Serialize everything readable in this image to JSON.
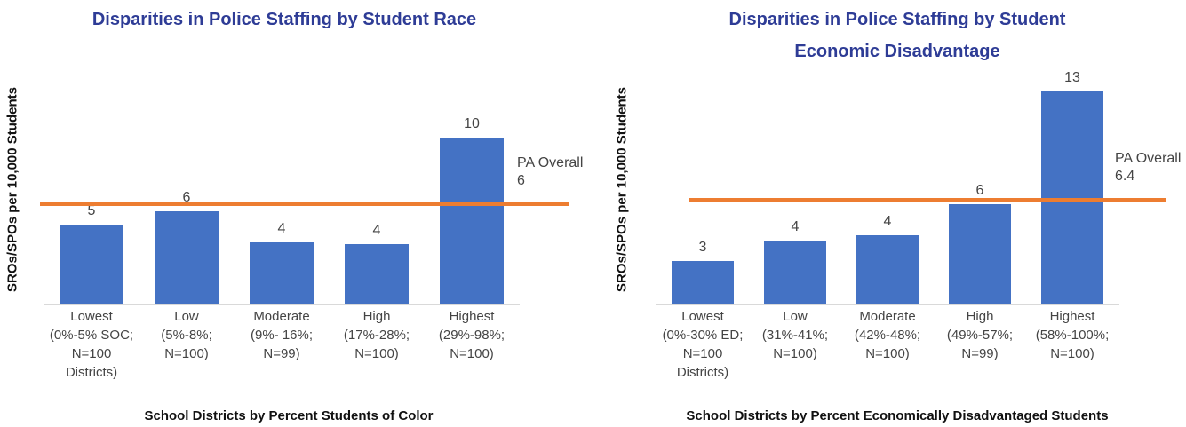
{
  "chart_data": [
    {
      "type": "bar",
      "title": "Disparities in Police Staffing by Student Race",
      "x_label": "School Districts by Percent Students of Color",
      "y_label": "SROs/SPOs per 10,000 Students",
      "categories": [
        "Lowest\n(0%-5% SOC;\nN=100\nDistricts)",
        "Low\n(5%-8%;\nN=100)",
        "Moderate\n(9%- 16%;\nN=99)",
        "High\n(17%-28%;\nN=100)",
        "Highest\n(29%-98%;\nN=100)"
      ],
      "values": [
        4.8,
        5.6,
        3.7,
        3.6,
        10.0
      ],
      "value_labels": [
        "5",
        "6",
        "4",
        "4",
        "10"
      ],
      "color": "#4472c4",
      "reference_line": {
        "label": "PA Overall",
        "value": 6,
        "color": "#ed7d31"
      },
      "ylim": [
        0,
        14
      ]
    },
    {
      "type": "bar",
      "title": "Disparities in Police Staffing by Student\nEconomic Disadvantage",
      "x_label": "School Districts by Percent Economically Disadvantaged Students",
      "y_label": "SROs/SPOs per 10,000 Students",
      "categories": [
        "Lowest\n(0%-30% ED;\nN=100\nDistricts)",
        "Low\n(31%-41%;\nN=100)",
        "Moderate\n(42%-48%;\nN=100)",
        "High\n(49%-57%;\nN=99)",
        "Highest\n(58%-100%;\nN=100)"
      ],
      "values": [
        2.65,
        3.9,
        4.2,
        6.1,
        13.0
      ],
      "value_labels": [
        "3",
        "4",
        "4",
        "6",
        "13"
      ],
      "color": "#4472c4",
      "reference_line": {
        "label": "PA Overall",
        "value": 6.4,
        "color": "#ed7d31"
      },
      "ylim": [
        0,
        14
      ]
    }
  ]
}
